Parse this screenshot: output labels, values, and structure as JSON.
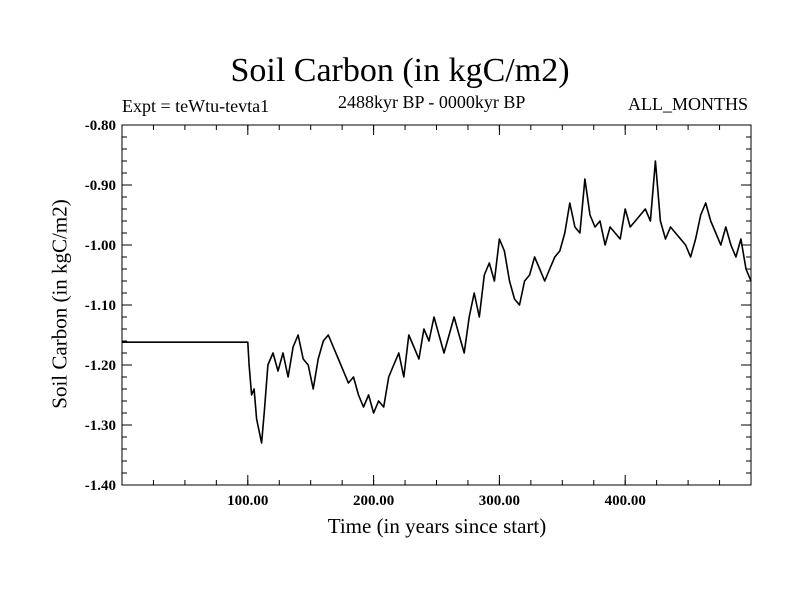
{
  "chart_data": {
    "type": "line",
    "title": "Soil Carbon (in kgC/m2)",
    "subtitle_left": "Expt = teWtu-tevta1",
    "subtitle_center": "2488kyr BP - 0000kyr BP",
    "subtitle_right": "ALL_MONTHS",
    "xlabel": "Time (in years since start)",
    "ylabel": "Soil Carbon (in kgC/m2)",
    "xlim": [
      0,
      500
    ],
    "ylim": [
      -1.4,
      -0.8
    ],
    "xticks": [
      {
        "value": 100,
        "label": "100.00"
      },
      {
        "value": 200,
        "label": "200.00"
      },
      {
        "value": 300,
        "label": "300.00"
      },
      {
        "value": 400,
        "label": "400.00"
      }
    ],
    "yticks": [
      {
        "value": -0.8,
        "label": "-0.80"
      },
      {
        "value": -0.9,
        "label": "-0.90"
      },
      {
        "value": -1.0,
        "label": "-1.00"
      },
      {
        "value": -1.1,
        "label": "-1.10"
      },
      {
        "value": -1.2,
        "label": "-1.20"
      },
      {
        "value": -1.3,
        "label": "-1.30"
      },
      {
        "value": -1.4,
        "label": "-1.40"
      }
    ],
    "series": [
      {
        "name": "Soil Carbon",
        "color": "#000000",
        "x": [
          0,
          100,
          101,
          103,
          105,
          107,
          109,
          111,
          113,
          116,
          120,
          124,
          128,
          132,
          136,
          140,
          144,
          148,
          152,
          156,
          160,
          164,
          168,
          172,
          176,
          180,
          184,
          188,
          192,
          196,
          200,
          204,
          208,
          212,
          216,
          220,
          224,
          228,
          232,
          236,
          240,
          244,
          248,
          252,
          256,
          260,
          264,
          268,
          272,
          276,
          280,
          284,
          288,
          292,
          296,
          300,
          304,
          308,
          312,
          316,
          320,
          324,
          328,
          332,
          336,
          340,
          344,
          348,
          352,
          356,
          360,
          364,
          368,
          372,
          376,
          380,
          384,
          388,
          392,
          396,
          400,
          404,
          408,
          412,
          416,
          420,
          424,
          428,
          432,
          436,
          440,
          444,
          448,
          452,
          456,
          460,
          464,
          468,
          472,
          476,
          480,
          484,
          488,
          492,
          496,
          500
        ],
        "values": [
          -1.162,
          -1.162,
          -1.2,
          -1.25,
          -1.24,
          -1.29,
          -1.31,
          -1.33,
          -1.28,
          -1.2,
          -1.18,
          -1.21,
          -1.18,
          -1.22,
          -1.17,
          -1.15,
          -1.19,
          -1.2,
          -1.24,
          -1.19,
          -1.16,
          -1.15,
          -1.17,
          -1.19,
          -1.21,
          -1.23,
          -1.22,
          -1.25,
          -1.27,
          -1.25,
          -1.28,
          -1.26,
          -1.27,
          -1.22,
          -1.2,
          -1.18,
          -1.22,
          -1.15,
          -1.17,
          -1.19,
          -1.14,
          -1.16,
          -1.12,
          -1.15,
          -1.18,
          -1.15,
          -1.12,
          -1.15,
          -1.18,
          -1.12,
          -1.08,
          -1.12,
          -1.05,
          -1.03,
          -1.06,
          -0.99,
          -1.01,
          -1.06,
          -1.09,
          -1.1,
          -1.06,
          -1.05,
          -1.02,
          -1.04,
          -1.06,
          -1.04,
          -1.02,
          -1.01,
          -0.98,
          -0.93,
          -0.97,
          -0.98,
          -0.89,
          -0.95,
          -0.97,
          -0.96,
          -1.0,
          -0.97,
          -0.98,
          -0.99,
          -0.94,
          -0.97,
          -0.96,
          -0.95,
          -0.94,
          -0.96,
          -0.86,
          -0.96,
          -0.99,
          -0.97,
          -0.98,
          -0.99,
          -1.0,
          -1.02,
          -0.99,
          -0.95,
          -0.93,
          -0.96,
          -0.98,
          -1.0,
          -0.97,
          -1.0,
          -1.02,
          -0.99,
          -1.04,
          -1.06
        ]
      }
    ]
  }
}
